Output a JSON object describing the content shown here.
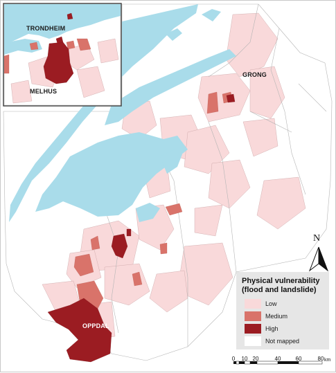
{
  "places": {
    "trondheim": "TRONDHEIM",
    "melhus": "MELHUS",
    "grong": "GRONG",
    "oppdal": "OPPDAL"
  },
  "legend": {
    "title_line1": "Physical vulnerability",
    "title_line2": "(flood and landslide)",
    "items": [
      {
        "label": "Low",
        "color": "#f9d9da"
      },
      {
        "label": "Medium",
        "color": "#d9736a"
      },
      {
        "label": "High",
        "color": "#9b1c22"
      },
      {
        "label": "Not mapped",
        "color": "#ffffff"
      }
    ]
  },
  "north_arrow": {
    "letter": "N"
  },
  "scale_bar": {
    "ticks": [
      "0",
      "10",
      "20",
      "40",
      "60",
      "80"
    ],
    "unit": "km"
  },
  "colors": {
    "water": "#a9dcea",
    "boundary": "#b5b5b5",
    "low": "#f9d9da",
    "medium": "#d9736a",
    "high": "#9b1c22"
  }
}
